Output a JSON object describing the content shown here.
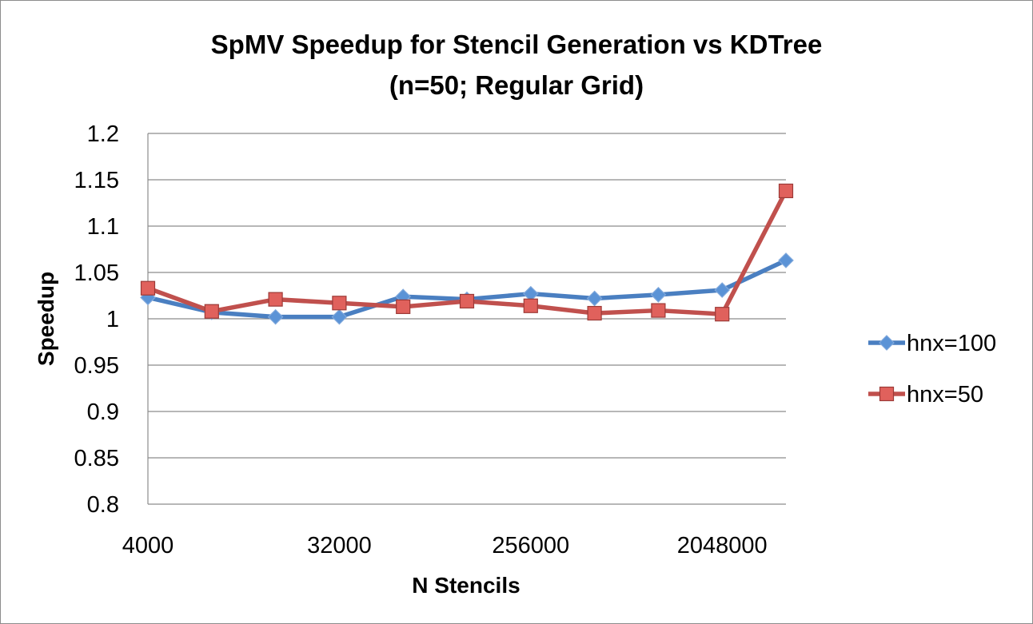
{
  "chart_data": {
    "type": "line",
    "title": "SpMV Speedup for Stencil Generation vs KDTree",
    "subtitle": "(n=50; Regular Grid)",
    "xlabel": "N Stencils",
    "ylabel": "Speedup",
    "x": [
      4000,
      8000,
      16000,
      32000,
      64000,
      128000,
      256000,
      512000,
      1024000,
      2048000,
      4096000
    ],
    "x_scale": "log2",
    "x_tick_labels": [
      "4000",
      "32000",
      "256000",
      "2048000"
    ],
    "x_tick_values": [
      4000,
      32000,
      256000,
      2048000
    ],
    "y_tick_labels": [
      "0.8",
      "0.85",
      "0.9",
      "0.95",
      "1",
      "1.05",
      "1.1",
      "1.15",
      "1.2"
    ],
    "ylim": [
      0.8,
      1.2
    ],
    "grid": "horizontal",
    "legend_position": "right",
    "series": [
      {
        "name": "hnx=100",
        "color": "#4a7fc1",
        "marker": "diamond",
        "values": [
          1.023,
          1.007,
          1.002,
          1.002,
          1.024,
          1.021,
          1.027,
          1.022,
          1.026,
          1.031,
          1.063
        ]
      },
      {
        "name": "hnx=50",
        "color": "#c0504d",
        "marker": "square",
        "values": [
          1.033,
          1.008,
          1.021,
          1.017,
          1.013,
          1.019,
          1.014,
          1.006,
          1.009,
          1.005,
          1.138
        ]
      }
    ]
  }
}
